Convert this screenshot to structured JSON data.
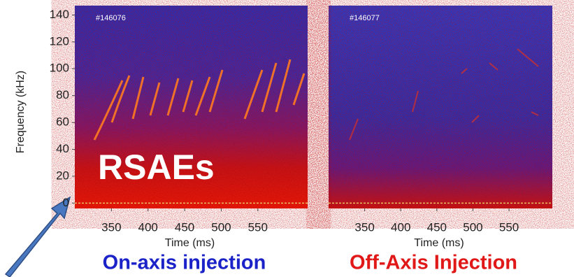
{
  "chart_data": [
    {
      "type": "spectrogram",
      "label": "#146076",
      "title": "On-axis injection",
      "title_color": "#1a22c8",
      "xlabel": "Time (ms)",
      "ylabel": "Frequency (kHz)",
      "annotation": "RSAEs",
      "xlim": [
        300,
        618
      ],
      "ylim": [
        -4,
        147
      ],
      "xticks": [
        350,
        400,
        450,
        500,
        550
      ],
      "yticks": [
        0,
        20,
        40,
        60,
        80,
        100,
        120,
        140
      ]
    },
    {
      "type": "spectrogram",
      "label": "#146077",
      "title": "Off-Axis Injection",
      "title_color": "#e01818",
      "xlabel": "Time (ms)",
      "xlim": [
        300,
        610
      ],
      "ylim": [
        -4,
        147
      ],
      "xticks": [
        350,
        400,
        450,
        500,
        550
      ]
    }
  ]
}
